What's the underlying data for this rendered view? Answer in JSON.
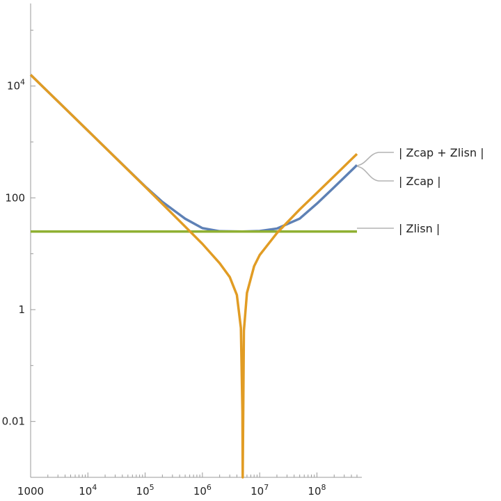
{
  "chart_data": {
    "type": "line",
    "title": "",
    "xlabel": "",
    "ylabel": "",
    "x_scale": "log",
    "y_scale": "log",
    "xlim": [
      1000,
      500000000
    ],
    "ylim": [
      0.001,
      300000
    ],
    "grid": false,
    "legend_placement": "right, labels at line ends",
    "x_ticks": [
      {
        "value": 1000,
        "base": "1000",
        "exp": ""
      },
      {
        "value": 10000,
        "base": "10",
        "exp": "4"
      },
      {
        "value": 100000,
        "base": "10",
        "exp": "5"
      },
      {
        "value": 1000000,
        "base": "10",
        "exp": "6"
      },
      {
        "value": 10000000,
        "base": "10",
        "exp": "7"
      },
      {
        "value": 100000000,
        "base": "10",
        "exp": "8"
      }
    ],
    "y_ticks": [
      {
        "value": 0.01,
        "base": "0.01",
        "exp": ""
      },
      {
        "value": 1,
        "base": "1",
        "exp": ""
      },
      {
        "value": 100,
        "base": "100",
        "exp": ""
      },
      {
        "value": 10000,
        "base": "10",
        "exp": "4"
      }
    ],
    "series": [
      {
        "name": "|Zcap + Zlisn|",
        "color": "#5e81b5",
        "x": [
          1000,
          3000,
          10000,
          30000,
          100000,
          200000,
          500000,
          1000000,
          2000000,
          5000000,
          10000000,
          20000000,
          50000000,
          100000000,
          200000000,
          500000000
        ],
        "y": [
          15900,
          5300,
          1590,
          531,
          160,
          84.5,
          42.3,
          28.7,
          25.3,
          25.0,
          25.5,
          28.2,
          42.5,
          78.8,
          155,
          385
        ]
      },
      {
        "name": "|Zcap|",
        "color": "#e19c24",
        "x": [
          1000,
          10000,
          100000,
          500000,
          1000000,
          2000000,
          3000000,
          4000000,
          4700000,
          5000000,
          5050000,
          5300000,
          6000000,
          8000000,
          10000000,
          20000000,
          50000000,
          100000000,
          200000000,
          500000000
        ],
        "y": [
          15900,
          1590,
          158,
          30.6,
          15.0,
          6.76,
          3.82,
          1.83,
          0.47,
          0.015,
          0.001,
          0.42,
          1.99,
          6.0,
          9.5,
          23.5,
          62.0,
          123,
          245,
          611
        ]
      },
      {
        "name": "|Zlisn|",
        "color": "#8fb032",
        "x": [
          1000,
          500000000
        ],
        "y": [
          25,
          25
        ]
      }
    ],
    "legend_labels": [
      {
        "series": "|Zcap + Zlisn|",
        "text": "| Zcap + Zlisn |"
      },
      {
        "series": "|Zcap|",
        "text": "| Zcap |"
      },
      {
        "series": "|Zlisn|",
        "text": "| Zlisn |"
      }
    ]
  }
}
